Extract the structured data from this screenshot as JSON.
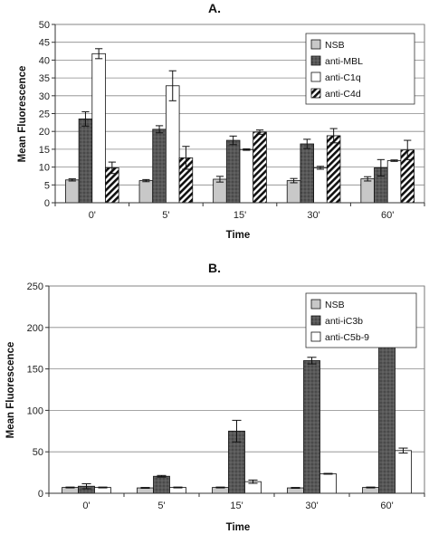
{
  "chart_data": [
    {
      "type": "bar",
      "title": "A.",
      "xlabel": "Time",
      "ylabel": "Mean Fluorescence",
      "ylim": [
        0,
        50
      ],
      "yticks": [
        0,
        5,
        10,
        15,
        20,
        25,
        30,
        35,
        40,
        45,
        50
      ],
      "grid": true,
      "legend_position": "top-right",
      "categories": [
        "0'",
        "5'",
        "15'",
        "30'",
        "60'"
      ],
      "series": [
        {
          "name": "NSB",
          "fill": "#c8c8c8",
          "pattern": "solid",
          "values": [
            6.4,
            6.2,
            6.6,
            6.2,
            6.7
          ],
          "errors": [
            0.3,
            0.3,
            0.8,
            0.6,
            0.6
          ]
        },
        {
          "name": "anti-MBL",
          "fill": "#585858",
          "pattern": "dots",
          "values": [
            23.5,
            20.6,
            17.5,
            16.5,
            9.8
          ],
          "errors": [
            2.0,
            1.0,
            1.2,
            1.3,
            2.3
          ]
        },
        {
          "name": "anti-C1q",
          "fill": "#ffffff",
          "pattern": "solid",
          "values": [
            41.8,
            32.8,
            14.9,
            9.8,
            11.8
          ],
          "errors": [
            1.4,
            4.2,
            0.2,
            0.4,
            0.2
          ]
        },
        {
          "name": "anti-C4d",
          "fill": "#ffffff",
          "pattern": "hatch",
          "values": [
            9.8,
            12.6,
            19.8,
            18.8,
            14.8
          ],
          "errors": [
            1.6,
            3.2,
            0.6,
            2.0,
            2.7
          ]
        }
      ]
    },
    {
      "type": "bar",
      "title": "B.",
      "xlabel": "Time",
      "ylabel": "Mean Fluorescence",
      "ylim": [
        0,
        250
      ],
      "yticks": [
        0,
        50,
        100,
        150,
        200,
        250
      ],
      "grid": true,
      "legend_position": "top-right",
      "categories": [
        "0'",
        "5'",
        "15'",
        "30'",
        "60'"
      ],
      "series": [
        {
          "name": "NSB",
          "fill": "#c8c8c8",
          "pattern": "solid",
          "values": [
            7,
            6.5,
            7,
            6.5,
            7
          ],
          "errors": [
            0.5,
            0.5,
            0.5,
            0.5,
            0.5
          ]
        },
        {
          "name": "anti-iC3b",
          "fill": "#585858",
          "pattern": "dots",
          "values": [
            8.5,
            20.5,
            75,
            160,
            213
          ],
          "errors": [
            3,
            1,
            13,
            4,
            10
          ]
        },
        {
          "name": "anti-C5b-9",
          "fill": "#ffffff",
          "pattern": "solid",
          "values": [
            7,
            7,
            14,
            23.5,
            51.5
          ],
          "errors": [
            0.5,
            0.5,
            2,
            0.5,
            3
          ]
        }
      ]
    }
  ]
}
